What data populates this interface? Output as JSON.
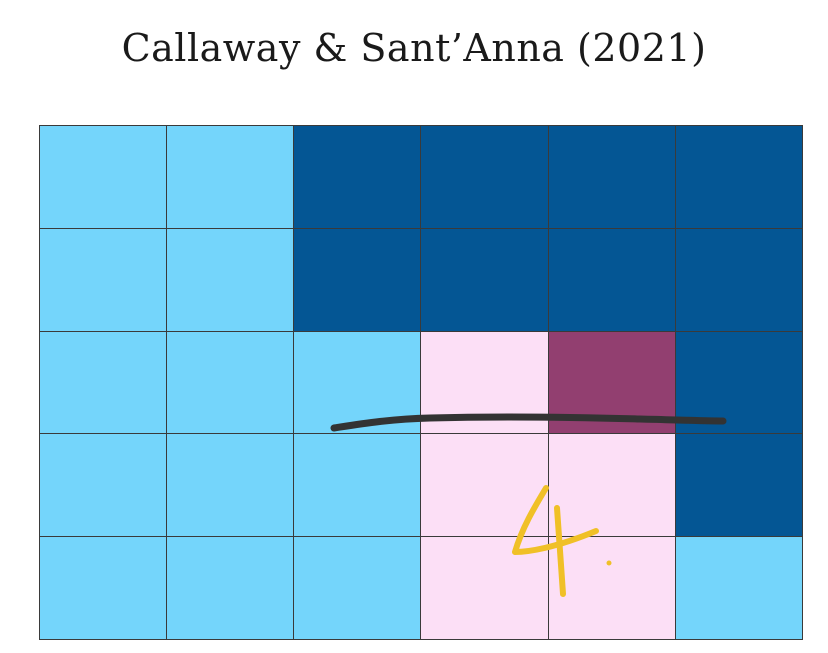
{
  "slide": {
    "title": "Callaway & Sant’Anna (2021)"
  },
  "colors": {
    "light_blue": "#74d5fb",
    "dark_blue": "#045694",
    "light_pink": "#fcdff6",
    "plum": "#923f70",
    "grid_line": "#3a3a3a",
    "marker_dark": "#333333",
    "marker_yellow": "#f0c027"
  },
  "grid": {
    "rows": 5,
    "cols": 6,
    "cells": [
      [
        "light_blue",
        "light_blue",
        "dark_blue",
        "dark_blue",
        "dark_blue",
        "dark_blue"
      ],
      [
        "light_blue",
        "light_blue",
        "dark_blue",
        "dark_blue",
        "dark_blue",
        "dark_blue"
      ],
      [
        "light_blue",
        "light_blue",
        "light_blue",
        "light_pink",
        "plum",
        "dark_blue"
      ],
      [
        "light_blue",
        "light_blue",
        "light_blue",
        "light_pink",
        "light_pink",
        "dark_blue"
      ],
      [
        "light_blue",
        "light_blue",
        "light_blue",
        "light_pink",
        "light_pink",
        "light_blue"
      ]
    ]
  },
  "annotations": {
    "handwritten_number": "4."
  }
}
